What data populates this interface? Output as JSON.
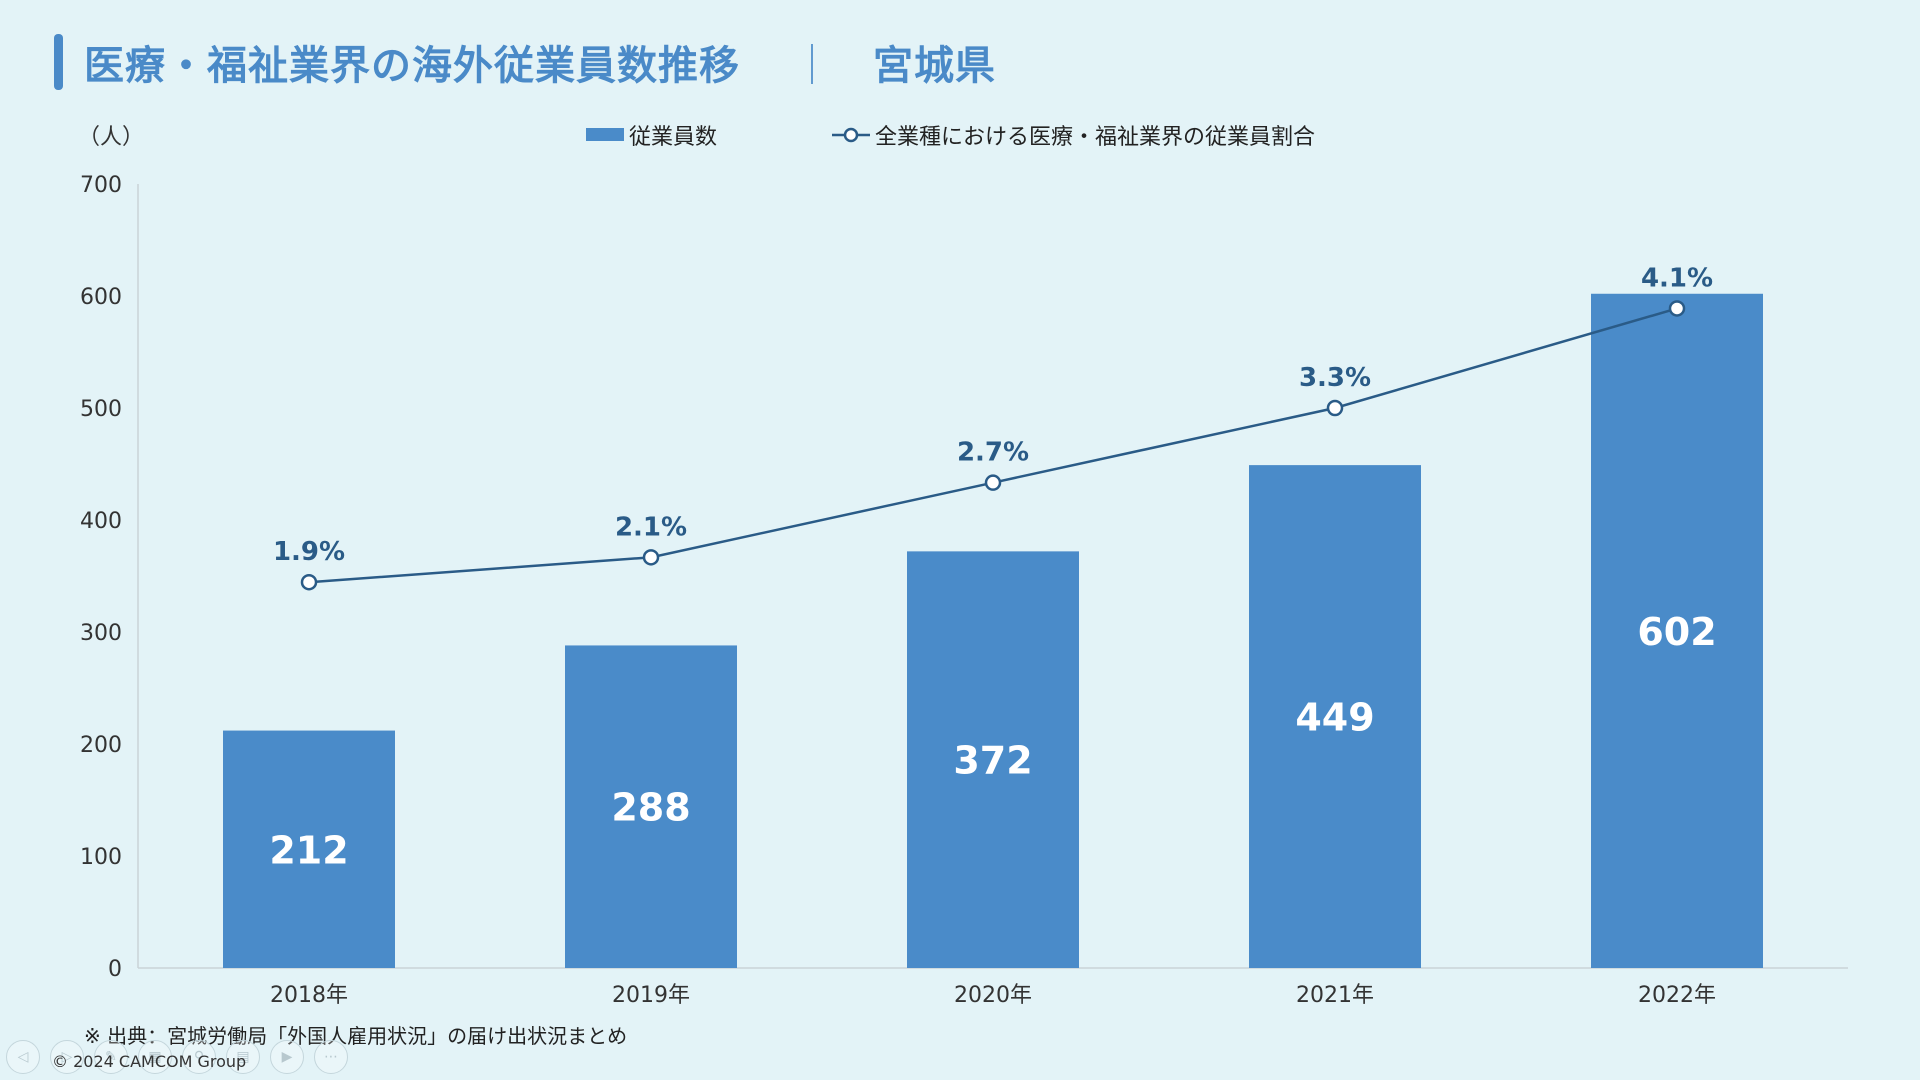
{
  "page": {
    "title": "医療・福祉業界の海外従業員数推移",
    "separator": "｜",
    "region": "宮城県",
    "source": "※ 出典：宮城労働局「外国人雇用状況」の届け出状況まとめ",
    "copyright": "© 2024 CAMCOM Group"
  },
  "colors": {
    "bar": "#4a8bc9",
    "line": "#2a5b87",
    "title": "#4a8ac8",
    "background": "#e3f3f7"
  },
  "nav_icons": [
    "prev-icon",
    "next-icon",
    "pen-icon",
    "grid-icon",
    "zoom-icon",
    "subtitle-icon",
    "camera-icon",
    "more-icon"
  ],
  "chart_data": {
    "type": "bar",
    "title": "医療・福祉業界の海外従業員数推移 ｜ 宮城県",
    "ylabel": "（人）",
    "xlabel": "",
    "ylim": [
      0,
      700
    ],
    "yticks": [
      0,
      100,
      200,
      300,
      400,
      500,
      600,
      700
    ],
    "categories": [
      "2018年",
      "2019年",
      "2020年",
      "2021年",
      "2022年"
    ],
    "legend": {
      "placement": "top-center",
      "entries": [
        "従業員数",
        "全業種における医療・福祉業界の従業員割合"
      ]
    },
    "series": [
      {
        "name": "従業員数",
        "type": "bar",
        "values": [
          212,
          288,
          372,
          449,
          602
        ],
        "labels": [
          "212",
          "288",
          "372",
          "449",
          "602"
        ]
      },
      {
        "name": "全業種における医療・福祉業界の従業員割合",
        "type": "line",
        "values": [
          1.9,
          2.1,
          2.7,
          3.3,
          4.1
        ],
        "labels": [
          "1.9%",
          "2.1%",
          "2.7%",
          "3.3%",
          "4.1%"
        ],
        "secondary_axis_range": [
          -1.2,
          5.1
        ]
      }
    ]
  }
}
